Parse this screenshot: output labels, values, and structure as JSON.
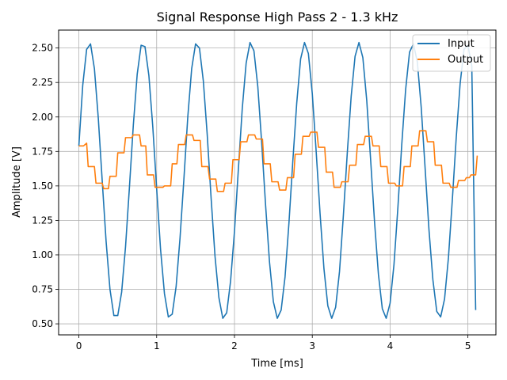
{
  "chart_data": {
    "type": "line",
    "title": "Signal Response High Pass 2 - 1.3 kHz",
    "xlabel": "Time [ms]",
    "ylabel": "Amplitude [V]",
    "xlim": [
      -0.26,
      5.36
    ],
    "ylim": [
      0.42,
      2.63
    ],
    "xticks": [
      0,
      1,
      2,
      3,
      4,
      5
    ],
    "xtick_labels": [
      "0",
      "1",
      "2",
      "3",
      "4",
      "5"
    ],
    "yticks": [
      0.5,
      0.75,
      1.0,
      1.25,
      1.5,
      1.75,
      2.0,
      2.25,
      2.5
    ],
    "ytick_labels": [
      "0.50",
      "0.75",
      "1.00",
      "1.25",
      "1.50",
      "1.75",
      "2.00",
      "2.25",
      "2.50"
    ],
    "grid": true,
    "legend_position": "top-right",
    "series": [
      {
        "name": "Input",
        "color": "#1f77b4",
        "x": [
          0.0,
          0.05,
          0.1,
          0.15,
          0.2,
          0.25,
          0.3,
          0.35,
          0.4,
          0.45,
          0.5,
          0.55,
          0.6,
          0.65,
          0.7,
          0.75,
          0.8,
          0.85,
          0.9,
          0.95,
          1.0,
          1.05,
          1.1,
          1.15,
          1.2,
          1.25,
          1.3,
          1.35,
          1.4,
          1.45,
          1.5,
          1.55,
          1.6,
          1.65,
          1.7,
          1.75,
          1.8,
          1.85,
          1.9,
          1.95,
          2.0,
          2.05,
          2.1,
          2.15,
          2.2,
          2.25,
          2.3,
          2.35,
          2.4,
          2.45,
          2.5,
          2.55,
          2.6,
          2.65,
          2.7,
          2.75,
          2.8,
          2.85,
          2.9,
          2.95,
          3.0,
          3.05,
          3.1,
          3.15,
          3.2,
          3.25,
          3.3,
          3.35,
          3.4,
          3.45,
          3.5,
          3.55,
          3.6,
          3.65,
          3.7,
          3.75,
          3.8,
          3.85,
          3.9,
          3.95,
          4.0,
          4.05,
          4.1,
          4.15,
          4.2,
          4.25,
          4.3,
          4.35,
          4.4,
          4.45,
          4.5,
          4.55,
          4.6,
          4.65,
          4.7,
          4.75,
          4.8,
          4.85,
          4.9,
          4.95,
          5.0,
          5.05,
          5.1
        ],
        "y": [
          1.79,
          2.23,
          2.49,
          2.53,
          2.35,
          1.99,
          1.54,
          1.1,
          0.75,
          0.56,
          0.56,
          0.73,
          1.06,
          1.49,
          1.94,
          2.31,
          2.52,
          2.51,
          2.3,
          1.93,
          1.48,
          1.04,
          0.72,
          0.55,
          0.57,
          0.77,
          1.12,
          1.55,
          2.0,
          2.35,
          2.53,
          2.5,
          2.26,
          1.87,
          1.41,
          0.99,
          0.69,
          0.54,
          0.58,
          0.81,
          1.17,
          1.62,
          2.06,
          2.39,
          2.54,
          2.48,
          2.22,
          1.81,
          1.36,
          0.95,
          0.66,
          0.54,
          0.6,
          0.84,
          1.23,
          1.68,
          2.1,
          2.42,
          2.54,
          2.46,
          2.17,
          1.75,
          1.3,
          0.9,
          0.63,
          0.54,
          0.62,
          0.88,
          1.29,
          1.74,
          2.15,
          2.44,
          2.54,
          2.43,
          2.12,
          1.69,
          1.24,
          0.86,
          0.61,
          0.54,
          0.65,
          0.93,
          1.34,
          1.8,
          2.2,
          2.47,
          2.53,
          2.4,
          2.07,
          1.63,
          1.18,
          0.82,
          0.59,
          0.55,
          0.68,
          0.98,
          1.4,
          1.85,
          2.24,
          2.49,
          2.52,
          2.37,
          0.6
        ]
      },
      {
        "name": "Output",
        "color": "#ff7f0e",
        "x": [
          0.0,
          0.06,
          0.1,
          0.12,
          0.2,
          0.22,
          0.3,
          0.32,
          0.38,
          0.4,
          0.48,
          0.5,
          0.58,
          0.6,
          0.68,
          0.7,
          0.78,
          0.8,
          0.86,
          0.88,
          0.96,
          0.98,
          1.08,
          1.1,
          1.18,
          1.2,
          1.26,
          1.28,
          1.36,
          1.38,
          1.46,
          1.48,
          1.56,
          1.58,
          1.66,
          1.68,
          1.76,
          1.78,
          1.86,
          1.88,
          1.96,
          1.98,
          2.06,
          2.08,
          2.16,
          2.18,
          2.26,
          2.28,
          2.36,
          2.38,
          2.46,
          2.48,
          2.56,
          2.58,
          2.66,
          2.68,
          2.76,
          2.78,
          2.86,
          2.88,
          2.96,
          2.98,
          3.06,
          3.08,
          3.16,
          3.18,
          3.26,
          3.28,
          3.36,
          3.38,
          3.46,
          3.48,
          3.56,
          3.58,
          3.66,
          3.68,
          3.76,
          3.78,
          3.86,
          3.88,
          3.96,
          3.98,
          4.06,
          4.08,
          4.16,
          4.18,
          4.26,
          4.28,
          4.36,
          4.38,
          4.46,
          4.48,
          4.56,
          4.58,
          4.66,
          4.68,
          4.76,
          4.78,
          4.86,
          4.88,
          4.96,
          4.98,
          5.02,
          5.04,
          5.1,
          5.12
        ],
        "y": [
          1.79,
          1.79,
          1.81,
          1.64,
          1.64,
          1.52,
          1.52,
          1.48,
          1.48,
          1.57,
          1.57,
          1.74,
          1.74,
          1.85,
          1.85,
          1.87,
          1.87,
          1.79,
          1.79,
          1.58,
          1.58,
          1.49,
          1.49,
          1.5,
          1.5,
          1.66,
          1.66,
          1.8,
          1.8,
          1.87,
          1.87,
          1.83,
          1.83,
          1.64,
          1.64,
          1.55,
          1.55,
          1.46,
          1.46,
          1.52,
          1.52,
          1.69,
          1.69,
          1.82,
          1.82,
          1.87,
          1.87,
          1.84,
          1.84,
          1.66,
          1.66,
          1.53,
          1.53,
          1.47,
          1.47,
          1.56,
          1.56,
          1.73,
          1.73,
          1.86,
          1.86,
          1.89,
          1.89,
          1.78,
          1.78,
          1.6,
          1.6,
          1.49,
          1.49,
          1.53,
          1.53,
          1.65,
          1.65,
          1.8,
          1.8,
          1.86,
          1.86,
          1.79,
          1.79,
          1.64,
          1.64,
          1.52,
          1.52,
          1.5,
          1.5,
          1.64,
          1.64,
          1.79,
          1.79,
          1.9,
          1.9,
          1.82,
          1.82,
          1.65,
          1.65,
          1.52,
          1.52,
          1.49,
          1.49,
          1.54,
          1.54,
          1.56,
          1.56,
          1.58,
          1.58,
          1.72
        ]
      }
    ]
  }
}
